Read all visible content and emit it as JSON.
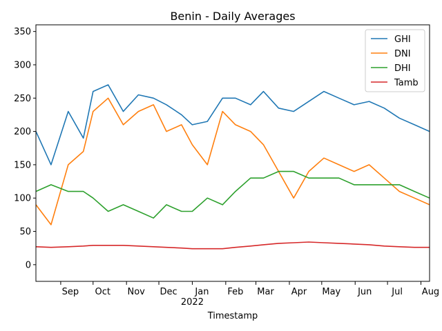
{
  "chart_data": {
    "type": "line",
    "title": "Benin - Daily Averages",
    "xlabel": "Timestamp",
    "ylabel": "",
    "x_start": "2021-08-09",
    "x_end": "2022-08-09",
    "ylim": [
      -25,
      360
    ],
    "yticks": [
      0,
      50,
      100,
      150,
      200,
      250,
      300,
      350
    ],
    "xticks": [
      {
        "date": "2021-09-01",
        "label": "Sep"
      },
      {
        "date": "2021-10-01",
        "label": "Oct"
      },
      {
        "date": "2021-11-01",
        "label": "Nov"
      },
      {
        "date": "2021-12-01",
        "label": "Dec"
      },
      {
        "date": "2022-01-01",
        "label": "Jan",
        "sublabel": "2022"
      },
      {
        "date": "2022-02-01",
        "label": "Feb"
      },
      {
        "date": "2022-03-01",
        "label": "Mar"
      },
      {
        "date": "2022-04-01",
        "label": "Apr"
      },
      {
        "date": "2022-05-01",
        "label": "May"
      },
      {
        "date": "2022-06-01",
        "label": "Jun"
      },
      {
        "date": "2022-07-01",
        "label": "Jul"
      },
      {
        "date": "2022-08-01",
        "label": "Aug"
      }
    ],
    "grid": false,
    "legend": "top-right",
    "series": [
      {
        "name": "GHI",
        "color": "#1f77b4",
        "x": [
          "2021-08-09",
          "2021-08-23",
          "2021-09-08",
          "2021-09-22",
          "2021-10-01",
          "2021-10-15",
          "2021-10-29",
          "2021-11-12",
          "2021-11-26",
          "2021-12-08",
          "2021-12-22",
          "2022-01-01",
          "2022-01-15",
          "2022-01-29",
          "2022-02-10",
          "2022-02-24",
          "2022-03-08",
          "2022-03-22",
          "2022-04-05",
          "2022-04-19",
          "2022-05-03",
          "2022-05-17",
          "2022-05-31",
          "2022-06-14",
          "2022-06-28",
          "2022-07-12",
          "2022-07-26",
          "2022-08-09"
        ],
        "y": [
          200,
          150,
          230,
          190,
          260,
          270,
          230,
          255,
          250,
          240,
          225,
          210,
          215,
          250,
          250,
          240,
          260,
          235,
          230,
          245,
          260,
          250,
          240,
          245,
          235,
          220,
          210,
          200
        ]
      },
      {
        "name": "DNI",
        "color": "#ff7f0e",
        "x": [
          "2021-08-09",
          "2021-08-23",
          "2021-09-08",
          "2021-09-22",
          "2021-10-01",
          "2021-10-15",
          "2021-10-29",
          "2021-11-12",
          "2021-11-26",
          "2021-12-08",
          "2021-12-22",
          "2022-01-01",
          "2022-01-15",
          "2022-01-29",
          "2022-02-10",
          "2022-02-24",
          "2022-03-08",
          "2022-03-22",
          "2022-04-05",
          "2022-04-19",
          "2022-05-03",
          "2022-05-17",
          "2022-05-31",
          "2022-06-14",
          "2022-06-28",
          "2022-07-12",
          "2022-07-26",
          "2022-08-09"
        ],
        "y": [
          90,
          60,
          150,
          170,
          230,
          250,
          210,
          230,
          240,
          200,
          210,
          180,
          150,
          230,
          210,
          200,
          180,
          140,
          100,
          140,
          160,
          150,
          140,
          150,
          130,
          110,
          100,
          90
        ]
      },
      {
        "name": "DHI",
        "color": "#2ca02c",
        "x": [
          "2021-08-09",
          "2021-08-23",
          "2021-09-08",
          "2021-09-22",
          "2021-10-01",
          "2021-10-15",
          "2021-10-29",
          "2021-11-12",
          "2021-11-26",
          "2021-12-08",
          "2021-12-22",
          "2022-01-01",
          "2022-01-15",
          "2022-01-29",
          "2022-02-10",
          "2022-02-24",
          "2022-03-08",
          "2022-03-22",
          "2022-04-05",
          "2022-04-19",
          "2022-05-03",
          "2022-05-17",
          "2022-05-31",
          "2022-06-14",
          "2022-06-28",
          "2022-07-12",
          "2022-07-26",
          "2022-08-09"
        ],
        "y": [
          110,
          120,
          110,
          110,
          100,
          80,
          90,
          80,
          70,
          90,
          80,
          80,
          100,
          90,
          110,
          130,
          130,
          140,
          140,
          130,
          130,
          130,
          120,
          120,
          120,
          120,
          110,
          100
        ]
      },
      {
        "name": "Tamb",
        "color": "#d62728",
        "x": [
          "2021-08-09",
          "2021-08-23",
          "2021-09-08",
          "2021-09-22",
          "2021-10-01",
          "2021-10-15",
          "2021-10-29",
          "2021-11-12",
          "2021-11-26",
          "2021-12-08",
          "2021-12-22",
          "2022-01-01",
          "2022-01-15",
          "2022-01-29",
          "2022-02-10",
          "2022-02-24",
          "2022-03-08",
          "2022-03-22",
          "2022-04-05",
          "2022-04-19",
          "2022-05-03",
          "2022-05-17",
          "2022-05-31",
          "2022-06-14",
          "2022-06-28",
          "2022-07-12",
          "2022-07-26",
          "2022-08-09"
        ],
        "y": [
          27,
          26,
          27,
          28,
          29,
          29,
          29,
          28,
          27,
          26,
          25,
          24,
          24,
          24,
          26,
          28,
          30,
          32,
          33,
          34,
          33,
          32,
          31,
          30,
          28,
          27,
          26,
          26
        ]
      }
    ]
  }
}
